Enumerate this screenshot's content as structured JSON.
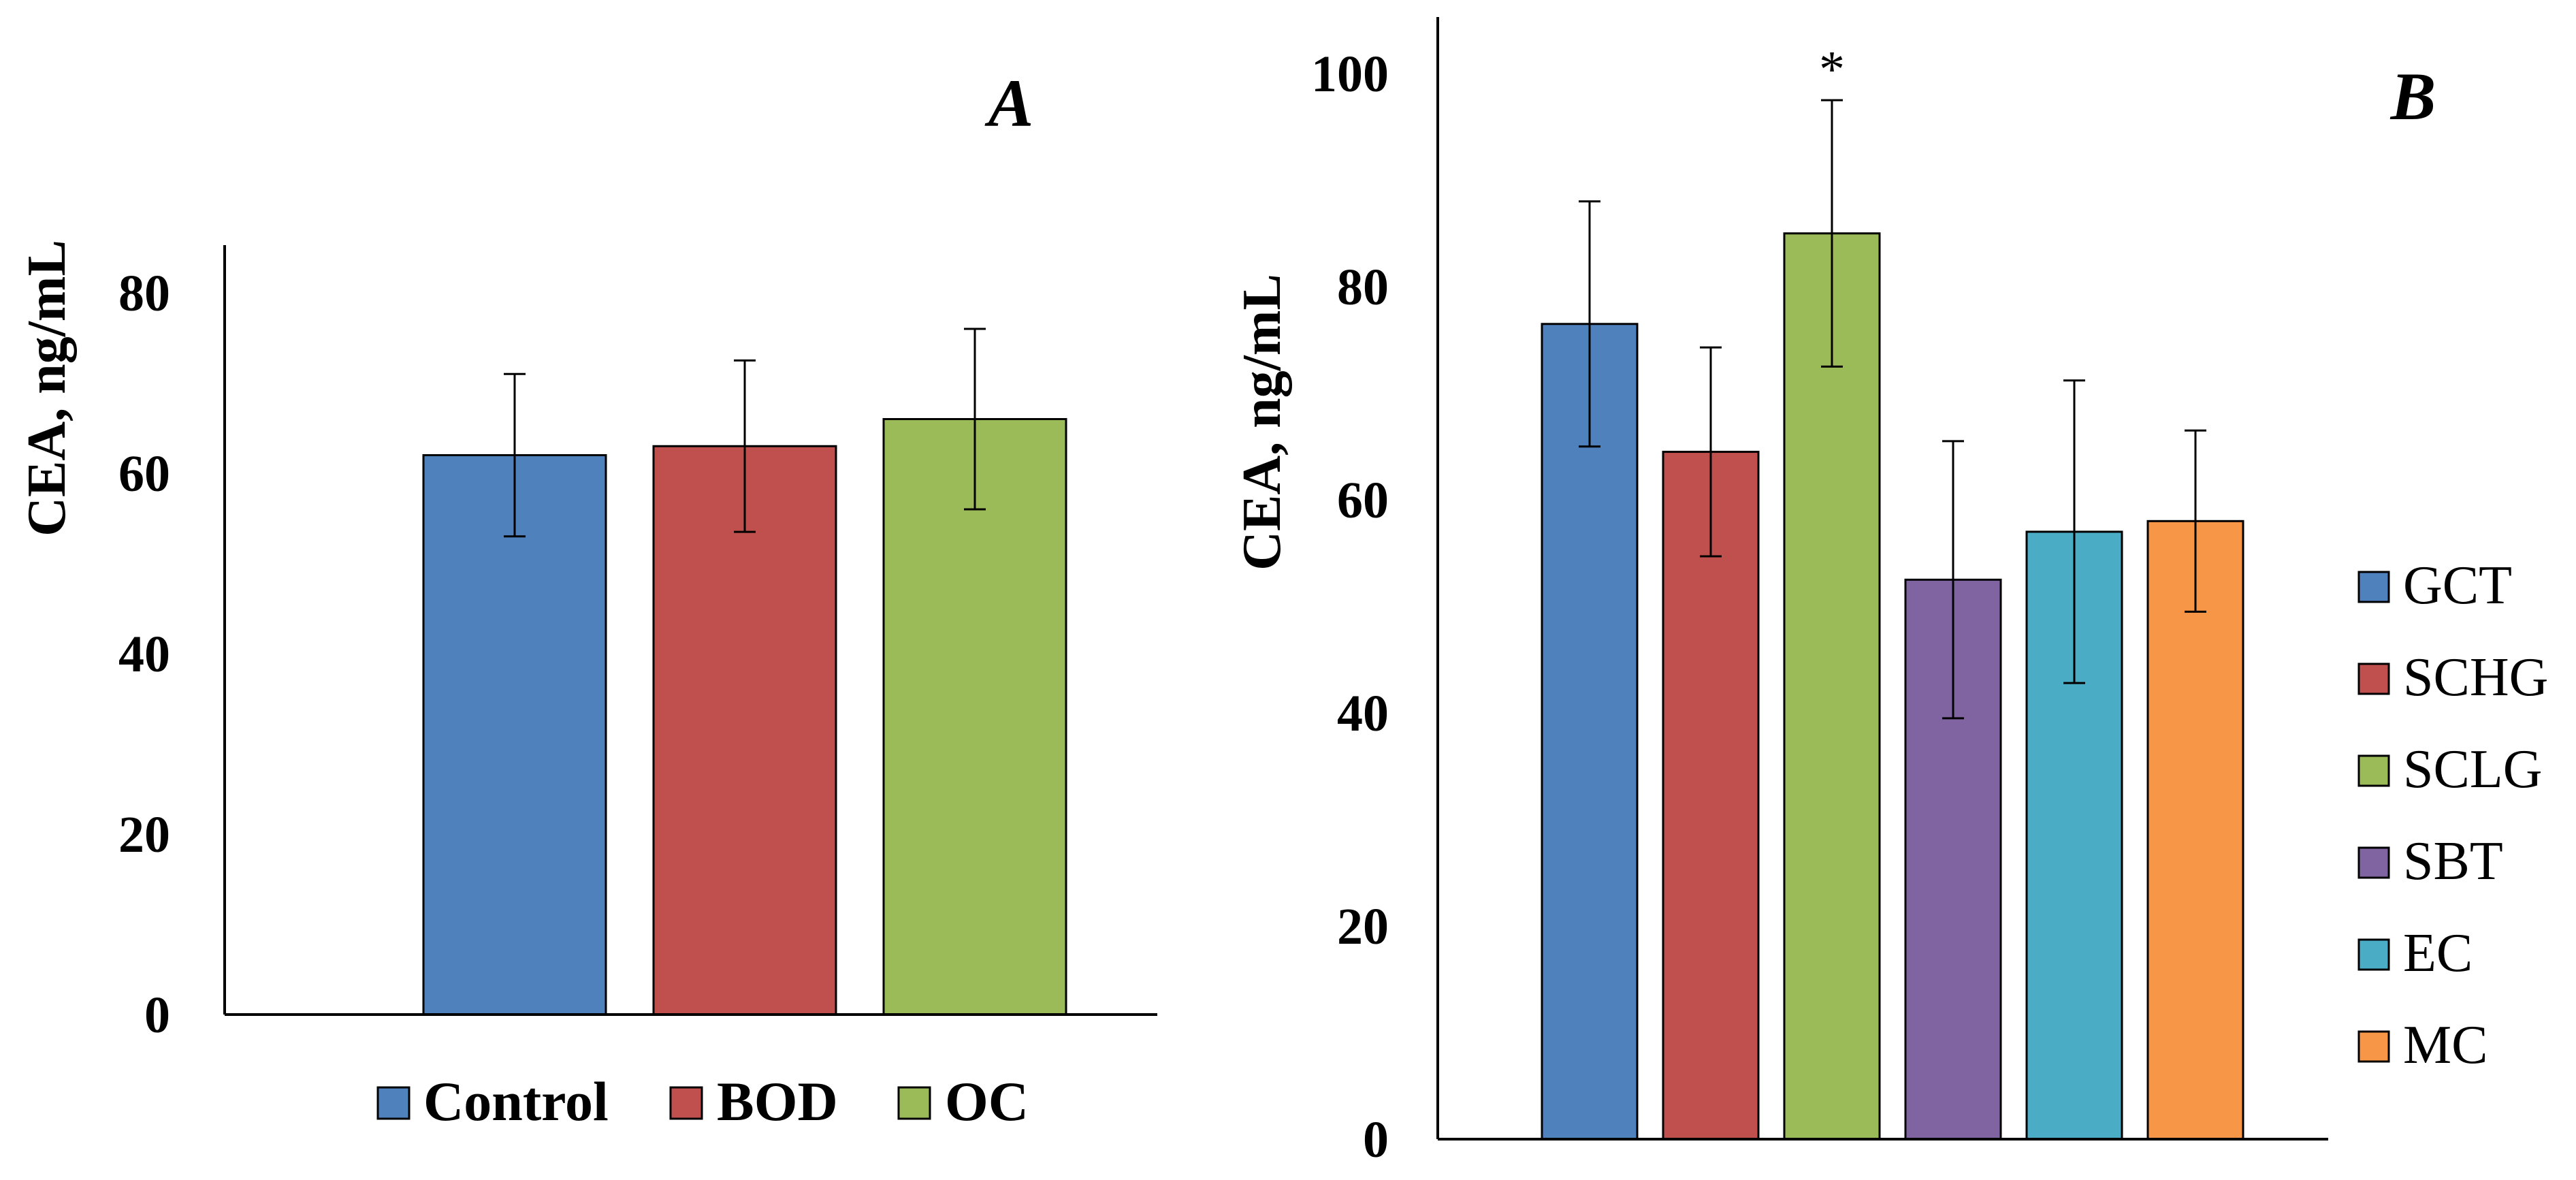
{
  "chart_data": [
    {
      "id": "A",
      "type": "bar",
      "panel_label": "A",
      "ylabel": "CEA, ng/mL",
      "ylim": [
        0,
        85
      ],
      "yticks": [
        0,
        20,
        40,
        60,
        80
      ],
      "categories": [
        "Control",
        "BOD",
        "OC"
      ],
      "values": [
        62,
        63,
        66
      ],
      "errors": [
        9,
        9.5,
        10
      ],
      "colors": [
        "#4F81BD",
        "#C0504D",
        "#9BBB59"
      ],
      "legend": [
        "Control",
        "BOD",
        "OC"
      ],
      "legend_position": "bottom",
      "annotations": []
    },
    {
      "id": "B",
      "type": "bar",
      "panel_label": "B",
      "ylabel": "CEA, ng/mL",
      "ylim": [
        0,
        100
      ],
      "yticks": [
        0,
        20,
        40,
        60,
        80,
        100
      ],
      "categories": [
        "GCT",
        "SCHG",
        "SCLG",
        "SBT",
        "EC",
        "MC"
      ],
      "values": [
        76.5,
        64.5,
        85,
        52.5,
        57,
        58
      ],
      "errors": [
        11.5,
        9.8,
        12.5,
        13,
        14.2,
        8.5
      ],
      "colors": [
        "#4F81BD",
        "#C0504D",
        "#9BBB59",
        "#8064A2",
        "#4BACC6",
        "#F79646"
      ],
      "legend": [
        "GCT",
        "SCHG",
        "SCLG",
        "SBT",
        "EC",
        "MC"
      ],
      "legend_position": "right",
      "annotations": [
        {
          "category": "SCLG",
          "text": "*"
        }
      ]
    }
  ]
}
